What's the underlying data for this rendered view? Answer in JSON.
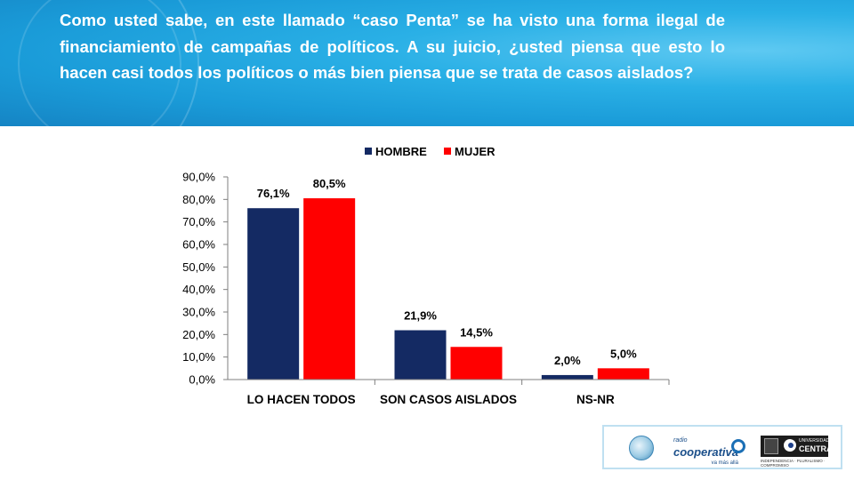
{
  "header": {
    "question": "Como usted sabe, en este llamado “caso Penta” se ha visto una forma ilegal de financiamiento de campañas de políticos. A su juicio, ¿usted piensa que esto lo hacen casi todos los políticos o más bien piensa que se trata de casos aislados?"
  },
  "chart_data": {
    "type": "bar",
    "title": "",
    "xlabel": "",
    "ylabel": "",
    "categories": [
      "LO HACEN TODOS",
      "SON CASOS AISLADOS",
      "NS-NR"
    ],
    "series": [
      {
        "name": "HOMBRE",
        "color": "#142a63",
        "values": [
          76.1,
          21.9,
          2.0
        ],
        "labels": [
          "76,1%",
          "21,9%",
          "2,0%"
        ]
      },
      {
        "name": "MUJER",
        "color": "#ff0000",
        "values": [
          80.5,
          14.5,
          5.0
        ],
        "labels": [
          "80,5%",
          "14,5%",
          "5,0%"
        ]
      }
    ],
    "ylim": [
      0,
      90
    ],
    "yticks": [
      "0,0%",
      "10,0%",
      "20,0%",
      "30,0%",
      "40,0%",
      "50,0%",
      "60,0%",
      "70,0%",
      "80,0%",
      "90,0%"
    ],
    "ytick_step": 10,
    "grid": false,
    "legend_position": "top-center"
  },
  "logos": {
    "radio_small": "radio",
    "coop_name": "cooperativa",
    "coop_tag": "va más allá",
    "uc_small": "UNIVERSIDAD",
    "uc_name": "CENTRAL",
    "uc_motto": "INDEPENDENCIA · PLURALISMO · COMPROMISO"
  }
}
